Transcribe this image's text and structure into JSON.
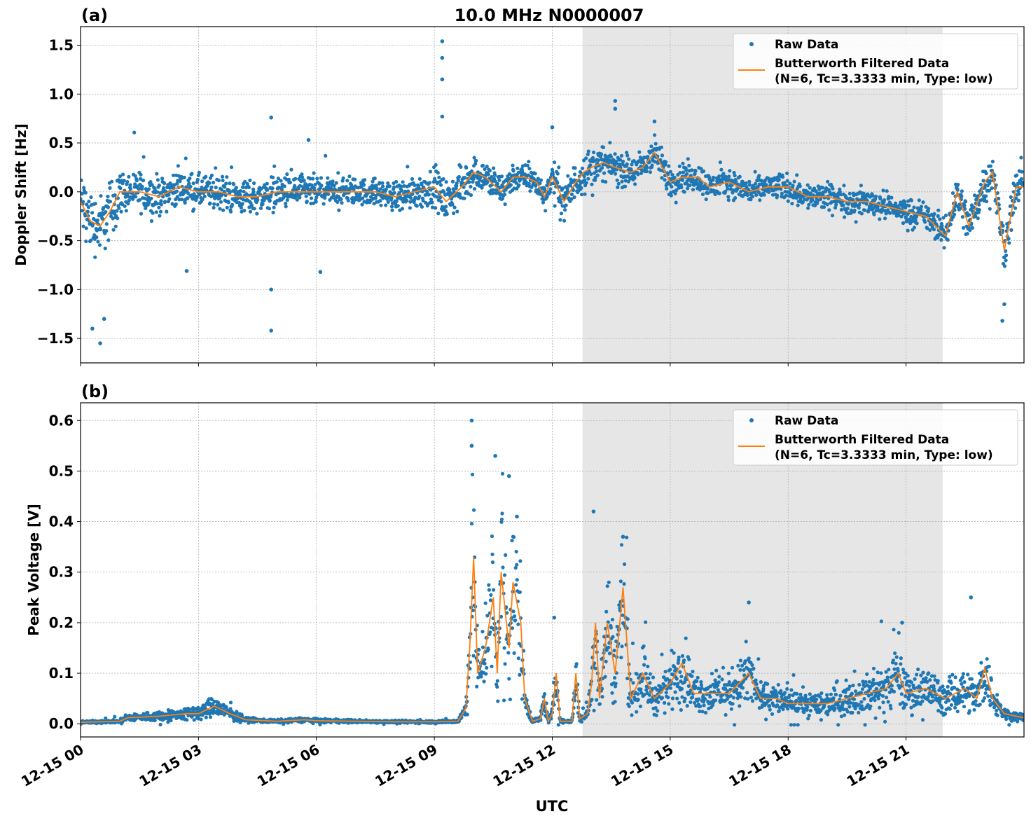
{
  "chart_data": [
    {
      "panel_label": "(a)",
      "title": "10.0 MHz N0000007",
      "type": "scatter+line",
      "xlabel": "",
      "ylabel": "Doppler Shift [Hz]",
      "xlim_hours_utc": [
        0,
        24
      ],
      "ylim": [
        -1.75,
        1.69
      ],
      "yticks": [
        -1.5,
        -1.0,
        -0.5,
        0.0,
        0.5,
        1.0,
        1.5
      ],
      "ytick_labels": [
        "−1.5",
        "−1.0",
        "−0.5",
        "0.0",
        "0.5",
        "1.0",
        "1.5"
      ],
      "grid": true,
      "shaded_span_hours_utc": [
        12.77,
        21.93
      ],
      "legend": {
        "placement": "upper right",
        "entries": [
          "Raw Data",
          "Butterworth Filtered Data",
          "(N=6, Tc=3.3333 min, Type: low)"
        ]
      },
      "series": [
        {
          "name": "Raw Data",
          "kind": "scatter",
          "color": "#1f77b4",
          "spread_by_hour": [
            0.45,
            0.3,
            0.25,
            0.25,
            0.25,
            0.25,
            0.2,
            0.2,
            0.25,
            0.3,
            0.25,
            0.2,
            0.3,
            0.25,
            0.25,
            0.22,
            0.2,
            0.2,
            0.2,
            0.2,
            0.2,
            0.2,
            0.3,
            0.3,
            0.3
          ],
          "outliers": [
            [
              0.3,
              -1.4
            ],
            [
              0.5,
              -1.55
            ],
            [
              0.6,
              -1.3
            ],
            [
              4.85,
              -1.0
            ],
            [
              4.85,
              -1.42
            ],
            [
              4.85,
              0.76
            ],
            [
              5.8,
              0.53
            ],
            [
              6.1,
              -0.82
            ],
            [
              2.7,
              -0.81
            ],
            [
              9.2,
              1.54
            ],
            [
              9.2,
              1.37
            ],
            [
              9.2,
              1.15
            ],
            [
              9.2,
              0.77
            ],
            [
              13.6,
              0.93
            ],
            [
              13.6,
              0.85
            ],
            [
              23.45,
              -1.32
            ],
            [
              23.5,
              -1.15
            ],
            [
              12.0,
              0.66
            ],
            [
              14.6,
              0.72
            ]
          ]
        },
        {
          "name": "Butterworth Filtered Data",
          "kind": "line",
          "color": "#ff7f0e",
          "x": [
            0,
            0.25,
            0.5,
            0.75,
            1,
            1.5,
            2,
            2.5,
            3,
            3.5,
            4,
            4.5,
            5,
            5.5,
            6,
            6.5,
            7,
            7.5,
            8,
            8.5,
            9,
            9.3,
            9.7,
            10,
            10.3,
            10.7,
            11,
            11.3,
            11.6,
            11.8,
            12,
            12.3,
            12.6,
            12.8,
            13,
            13.3,
            13.6,
            14,
            14.3,
            14.6,
            15,
            15.3,
            15.7,
            16,
            16.5,
            17,
            17.5,
            18,
            18.5,
            19,
            19.5,
            20,
            20.5,
            21,
            21.5,
            22,
            22.3,
            22.6,
            23,
            23.2,
            23.5,
            23.8,
            24
          ],
          "y": [
            -0.1,
            -0.3,
            -0.35,
            -0.2,
            0.0,
            0.0,
            -0.05,
            0.05,
            0.0,
            0.0,
            -0.05,
            -0.05,
            0.0,
            0.0,
            0.0,
            0.0,
            0.0,
            0.0,
            -0.05,
            0.0,
            0.05,
            -0.1,
            0.05,
            0.2,
            0.15,
            0.0,
            0.15,
            0.15,
            0.1,
            -0.05,
            0.15,
            -0.1,
            0.1,
            0.2,
            0.25,
            0.3,
            0.25,
            0.2,
            0.25,
            0.4,
            0.1,
            0.15,
            0.15,
            0.05,
            0.1,
            0.0,
            0.05,
            0.05,
            -0.05,
            -0.05,
            -0.1,
            -0.1,
            -0.15,
            -0.2,
            -0.25,
            -0.45,
            0.0,
            -0.35,
            0.1,
            0.2,
            -0.6,
            0.05,
            0.05
          ]
        }
      ]
    },
    {
      "panel_label": "(b)",
      "title": "",
      "type": "scatter+line",
      "xlabel": "UTC",
      "ylabel": "Peak Voltage [V]",
      "xlim_hours_utc": [
        0,
        24
      ],
      "ylim": [
        -0.026,
        0.635
      ],
      "yticks": [
        0.0,
        0.1,
        0.2,
        0.3,
        0.4,
        0.5,
        0.6
      ],
      "ytick_labels": [
        "0.0",
        "0.1",
        "0.2",
        "0.3",
        "0.4",
        "0.5",
        "0.6"
      ],
      "xtick_labels": [
        "12-15 00",
        "12-15 03",
        "12-15 06",
        "12-15 09",
        "12-15 12",
        "12-15 15",
        "12-15 18",
        "12-15 21"
      ],
      "xticks_hours_utc": [
        0,
        3,
        6,
        9,
        12,
        15,
        18,
        21
      ],
      "grid": true,
      "shaded_span_hours_utc": [
        12.77,
        21.93
      ],
      "legend": {
        "placement": "upper right",
        "entries": [
          "Raw Data",
          "Butterworth Filtered Data",
          "(N=6, Tc=3.3333 min, Type: low)"
        ]
      },
      "series": [
        {
          "name": "Raw Data",
          "kind": "scatter",
          "color": "#1f77b4",
          "outliers": [
            [
              9.95,
              0.6
            ],
            [
              9.95,
              0.55
            ],
            [
              10.55,
              0.53
            ],
            [
              10.9,
              0.49
            ],
            [
              11.1,
              0.41
            ],
            [
              13.05,
              0.42
            ],
            [
              13.8,
              0.37
            ],
            [
              17.0,
              0.24
            ],
            [
              22.65,
              0.25
            ],
            [
              20.9,
              0.2
            ],
            [
              12.05,
              0.21
            ]
          ]
        },
        {
          "name": "Butterworth Filtered Data",
          "kind": "line",
          "color": "#ff7f0e",
          "x": [
            0,
            1,
            1.2,
            2,
            2.7,
            3,
            3.4,
            3.8,
            4.2,
            5,
            5.7,
            6,
            7,
            8,
            9,
            9.6,
            9.8,
            9.9,
            10,
            10.1,
            10.3,
            10.5,
            10.6,
            10.7,
            10.9,
            11,
            11.2,
            11.3,
            11.5,
            11.7,
            11.8,
            11.9,
            12,
            12.1,
            12.2,
            12.5,
            12.6,
            12.7,
            12.9,
            13,
            13.1,
            13.2,
            13.4,
            13.6,
            13.8,
            14,
            14.3,
            14.6,
            15,
            15.3,
            15.6,
            16,
            16.5,
            17,
            17.3,
            17.7,
            18,
            18.5,
            19,
            19.5,
            20,
            20.5,
            20.8,
            21,
            21.5,
            22,
            22.5,
            22.8,
            23,
            23.2,
            23.5,
            23.8,
            24
          ],
          "y": [
            0.003,
            0.005,
            0.012,
            0.015,
            0.02,
            0.02,
            0.035,
            0.02,
            0.008,
            0.005,
            0.008,
            0.006,
            0.005,
            0.004,
            0.004,
            0.005,
            0.03,
            0.15,
            0.33,
            0.1,
            0.15,
            0.25,
            0.1,
            0.3,
            0.15,
            0.28,
            0.2,
            0.05,
            0.005,
            0.01,
            0.05,
            0.005,
            0.02,
            0.1,
            0.005,
            0.005,
            0.1,
            0.01,
            0.02,
            0.08,
            0.2,
            0.05,
            0.2,
            0.1,
            0.27,
            0.05,
            0.1,
            0.05,
            0.08,
            0.12,
            0.06,
            0.06,
            0.06,
            0.1,
            0.05,
            0.05,
            0.04,
            0.04,
            0.04,
            0.05,
            0.06,
            0.07,
            0.1,
            0.06,
            0.07,
            0.05,
            0.07,
            0.05,
            0.11,
            0.05,
            0.02,
            0.015,
            0.012
          ]
        }
      ]
    }
  ]
}
